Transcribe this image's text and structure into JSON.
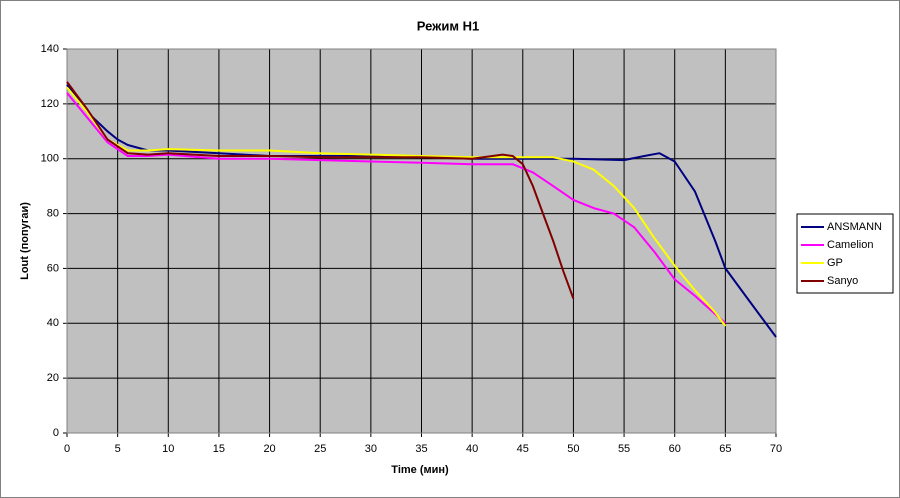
{
  "chart_data": {
    "type": "line",
    "title": "Режим H1",
    "x_label": "Time (мин)",
    "y_label": "Lout (попугаи)",
    "xlim": [
      0,
      70
    ],
    "xticks": [
      0,
      5,
      10,
      15,
      20,
      25,
      30,
      35,
      40,
      45,
      50,
      55,
      60,
      65,
      70
    ],
    "ylim": [
      0,
      140
    ],
    "yticks": [
      0,
      20,
      40,
      60,
      80,
      100,
      120,
      140
    ],
    "grid": true,
    "legend": "right",
    "series": [
      {
        "name": "ANSMANN",
        "color": "#000080",
        "x": [
          0,
          2,
          4,
          5,
          6,
          8,
          10,
          15,
          20,
          25,
          30,
          35,
          40,
          45,
          50,
          55,
          57,
          58.5,
          60,
          62,
          64,
          65,
          67,
          70
        ],
        "values": [
          127,
          117,
          110,
          107,
          105,
          103,
          103,
          102,
          101,
          101,
          101,
          100.5,
          100,
          100,
          100,
          99.5,
          101,
          102,
          99,
          88,
          70,
          60,
          50,
          35
        ]
      },
      {
        "name": "Camelion",
        "color": "#ff00ff",
        "x": [
          0,
          2,
          4,
          6,
          8,
          10,
          15,
          20,
          25,
          30,
          35,
          40,
          44,
          46,
          48,
          50,
          52,
          54,
          56,
          58,
          60,
          62,
          65
        ],
        "values": [
          124,
          115,
          106,
          101,
          101,
          101.5,
          100,
          100,
          99.5,
          99,
          98.5,
          98,
          98,
          95,
          90,
          85,
          82,
          80,
          75,
          66,
          56,
          50,
          40
        ]
      },
      {
        "name": "GP",
        "color": "#ffff00",
        "x": [
          0,
          2,
          4,
          6,
          8,
          10,
          15,
          20,
          25,
          30,
          35,
          40,
          45,
          48,
          50,
          52,
          54,
          56,
          58,
          60,
          62,
          64,
          65
        ],
        "values": [
          126,
          117,
          107,
          103,
          103,
          103.5,
          103,
          103,
          102,
          101.5,
          101,
          100.5,
          100.5,
          100.5,
          99,
          96,
          90,
          82,
          71,
          61,
          52,
          44,
          39
        ]
      },
      {
        "name": "Sanyo",
        "color": "#800000",
        "x": [
          0,
          2,
          4,
          6,
          8,
          10,
          15,
          20,
          25,
          30,
          35,
          40,
          42,
          43,
          44,
          45,
          46,
          47,
          48,
          49,
          50
        ],
        "values": [
          128,
          118,
          107,
          102,
          101.5,
          102,
          101,
          101,
          100.5,
          100.5,
          100.5,
          100,
          101,
          101.5,
          101,
          98,
          90,
          80,
          70,
          59,
          49
        ]
      }
    ]
  }
}
